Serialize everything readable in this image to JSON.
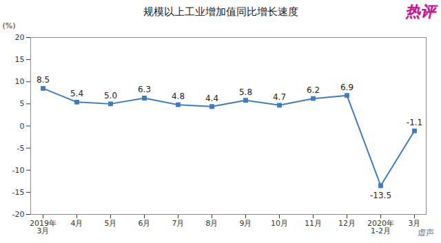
{
  "chart_data": {
    "type": "line",
    "title": "规模以上工业增加值同比增长速度",
    "y_label": "(%)",
    "categories": [
      "2019年\n3月",
      "4月",
      "5月",
      "6月",
      "7月",
      "8月",
      "9月",
      "10月",
      "11月",
      "12月",
      "2020年\n1-2月",
      "3月"
    ],
    "values": [
      8.5,
      5.4,
      5.0,
      6.3,
      4.8,
      4.4,
      5.8,
      4.7,
      6.2,
      6.9,
      -13.5,
      -1.1
    ],
    "value_labels": [
      "8.5",
      "5.4",
      "5.0",
      "6.3",
      "4.8",
      "4.4",
      "5.8",
      "4.7",
      "6.2",
      "6.9",
      "-13.5",
      "-1.1"
    ],
    "color": "#3c7cc4",
    "marker": "square",
    "ylim": [
      -20,
      20
    ],
    "yticks": [
      -20,
      -15,
      -10,
      -5,
      0,
      5,
      10,
      15,
      20
    ],
    "grid": false,
    "data_labels": true,
    "annotations": [
      "热评",
      "虚声"
    ]
  }
}
